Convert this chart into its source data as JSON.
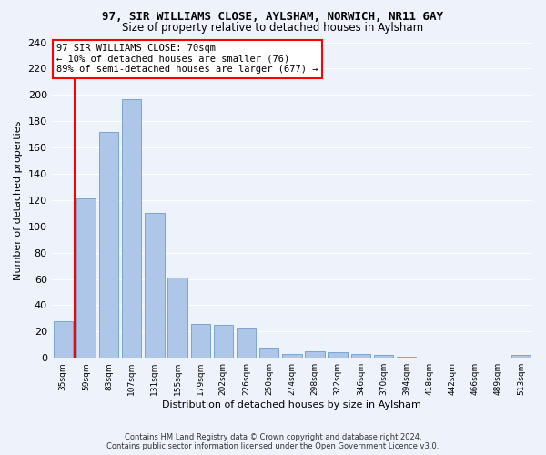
{
  "title": "97, SIR WILLIAMS CLOSE, AYLSHAM, NORWICH, NR11 6AY",
  "subtitle": "Size of property relative to detached houses in Aylsham",
  "xlabel": "Distribution of detached houses by size in Aylsham",
  "ylabel": "Number of detached properties",
  "bar_color": "#aec6e8",
  "bar_edge_color": "#5a8fc2",
  "bin_labels": [
    "35sqm",
    "59sqm",
    "83sqm",
    "107sqm",
    "131sqm",
    "155sqm",
    "179sqm",
    "202sqm",
    "226sqm",
    "250sqm",
    "274sqm",
    "298sqm",
    "322sqm",
    "346sqm",
    "370sqm",
    "394sqm",
    "418sqm",
    "442sqm",
    "466sqm",
    "489sqm",
    "513sqm"
  ],
  "bar_values": [
    28,
    121,
    172,
    197,
    110,
    61,
    26,
    25,
    23,
    8,
    3,
    5,
    4,
    3,
    2,
    1,
    0,
    0,
    0,
    0,
    2
  ],
  "red_line_x": 0.5,
  "ylim": [
    0,
    240
  ],
  "yticks": [
    0,
    20,
    40,
    60,
    80,
    100,
    120,
    140,
    160,
    180,
    200,
    220,
    240
  ],
  "annotation_box_text": "97 SIR WILLIAMS CLOSE: 70sqm\n← 10% of detached houses are smaller (76)\n89% of semi-detached houses are larger (677) →",
  "footer_line1": "Contains HM Land Registry data © Crown copyright and database right 2024.",
  "footer_line2": "Contains public sector information licensed under the Open Government Licence v3.0.",
  "background_color": "#eef2fa",
  "grid_color": "#ffffff",
  "title_fontsize": 9,
  "subtitle_fontsize": 8.5,
  "ylabel_fontsize": 8,
  "xlabel_fontsize": 8,
  "ytick_fontsize": 8,
  "xtick_fontsize": 6.5,
  "annotation_fontsize": 7.5,
  "footer_fontsize": 6
}
